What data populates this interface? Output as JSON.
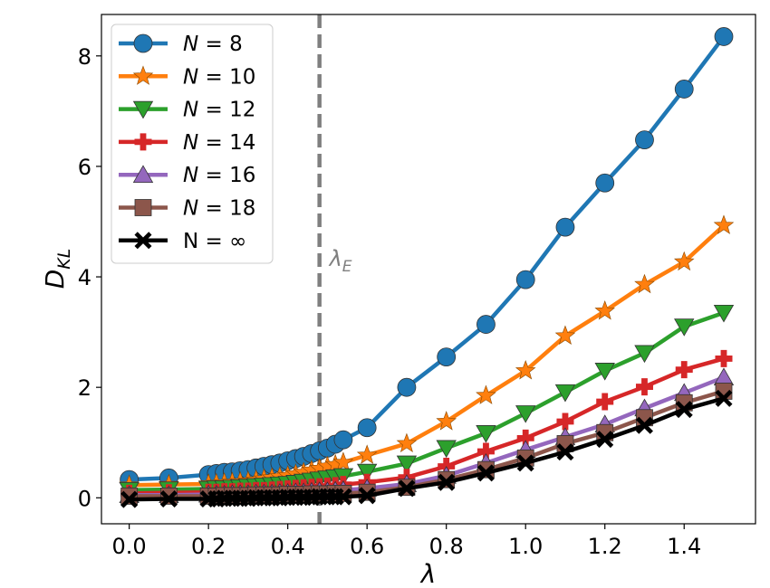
{
  "chart_data": {
    "type": "line",
    "title": "",
    "xlabel": "λ",
    "ylabel_main": "D",
    "ylabel_sub": "KL",
    "xlim": [
      -0.07,
      1.58
    ],
    "ylim": [
      -0.47,
      8.75
    ],
    "xticks": [
      0.0,
      0.2,
      0.4,
      0.6,
      0.8,
      1.0,
      1.2,
      1.4
    ],
    "xtick_labels": [
      "0.0",
      "0.2",
      "0.4",
      "0.6",
      "0.8",
      "1.0",
      "1.2",
      "1.4"
    ],
    "yticks": [
      0,
      2,
      4,
      6,
      8
    ],
    "ytick_labels": [
      "0",
      "2",
      "4",
      "6",
      "8"
    ],
    "grid": false,
    "legend_position": "top-left",
    "vline": {
      "x": 0.48,
      "color": "#7f7f7f",
      "style": "dashed"
    },
    "annotation": {
      "main": "λ",
      "sub": "E",
      "x": 0.505,
      "y": 4.2
    },
    "x": [
      0.0,
      0.1,
      0.2,
      0.22,
      0.24,
      0.26,
      0.28,
      0.3,
      0.32,
      0.34,
      0.36,
      0.38,
      0.4,
      0.42,
      0.44,
      0.46,
      0.48,
      0.5,
      0.52,
      0.54,
      0.6,
      0.7,
      0.8,
      0.9,
      1.0,
      1.1,
      1.2,
      1.3,
      1.4,
      1.5
    ],
    "series": [
      {
        "name_pre": "N",
        "name_post": " = 8",
        "color": "#1f77b4",
        "marker": "circle",
        "values": [
          0.33,
          0.36,
          0.42,
          0.44,
          0.46,
          0.47,
          0.49,
          0.51,
          0.54,
          0.57,
          0.6,
          0.63,
          0.67,
          0.71,
          0.75,
          0.8,
          0.85,
          0.9,
          0.97,
          1.05,
          1.27,
          2.0,
          2.55,
          3.14,
          3.95,
          4.9,
          5.7,
          6.48,
          7.4,
          8.35
        ]
      },
      {
        "name_pre": "N",
        "name_post": " = 10",
        "color": "#ff7f0e",
        "marker": "star",
        "values": [
          0.23,
          0.24,
          0.25,
          0.26,
          0.27,
          0.28,
          0.29,
          0.3,
          0.32,
          0.34,
          0.36,
          0.38,
          0.4,
          0.43,
          0.46,
          0.5,
          0.53,
          0.57,
          0.6,
          0.64,
          0.77,
          0.98,
          1.38,
          1.85,
          2.3,
          2.93,
          3.38,
          3.86,
          4.27,
          4.93
        ]
      },
      {
        "name_pre": "N",
        "name_post": " = 12",
        "color": "#2ca02c",
        "marker": "triangle-down",
        "values": [
          0.14,
          0.15,
          0.16,
          0.17,
          0.17,
          0.18,
          0.19,
          0.2,
          0.21,
          0.22,
          0.23,
          0.24,
          0.25,
          0.27,
          0.29,
          0.31,
          0.33,
          0.35,
          0.37,
          0.39,
          0.47,
          0.62,
          0.9,
          1.17,
          1.53,
          1.91,
          2.3,
          2.62,
          3.1,
          3.35
        ]
      },
      {
        "name_pre": "N",
        "name_post": " = 14",
        "color": "#d62728",
        "marker": "plus",
        "values": [
          0.08,
          0.09,
          0.1,
          0.1,
          0.11,
          0.11,
          0.12,
          0.12,
          0.13,
          0.13,
          0.14,
          0.15,
          0.16,
          0.17,
          0.18,
          0.19,
          0.2,
          0.21,
          0.22,
          0.24,
          0.28,
          0.37,
          0.57,
          0.84,
          1.08,
          1.38,
          1.74,
          2.01,
          2.32,
          2.52
        ]
      },
      {
        "name_pre": "N",
        "name_post": " = 16",
        "color": "#9467bd",
        "marker": "triangle-up",
        "values": [
          0.05,
          0.05,
          0.06,
          0.06,
          0.06,
          0.07,
          0.07,
          0.07,
          0.08,
          0.08,
          0.08,
          0.09,
          0.09,
          0.1,
          0.1,
          0.11,
          0.12,
          0.12,
          0.13,
          0.14,
          0.17,
          0.25,
          0.4,
          0.63,
          0.87,
          1.1,
          1.33,
          1.62,
          1.9,
          2.18
        ]
      },
      {
        "name_pre": "N",
        "name_post": " = 18",
        "color": "#8c564b",
        "marker": "square",
        "values": [
          0.03,
          0.03,
          0.03,
          0.03,
          0.04,
          0.04,
          0.04,
          0.04,
          0.05,
          0.05,
          0.05,
          0.05,
          0.06,
          0.06,
          0.06,
          0.07,
          0.07,
          0.07,
          0.08,
          0.08,
          0.1,
          0.19,
          0.33,
          0.51,
          0.72,
          0.98,
          1.18,
          1.45,
          1.72,
          1.93
        ]
      },
      {
        "name_pre": "N = ∞",
        "name_post": "",
        "color": "#000000",
        "marker": "x",
        "values": [
          -0.03,
          -0.02,
          -0.02,
          -0.02,
          -0.01,
          -0.01,
          -0.01,
          -0.01,
          0.0,
          0.0,
          0.0,
          0.0,
          0.01,
          0.01,
          0.01,
          0.01,
          0.02,
          0.02,
          0.02,
          0.02,
          0.04,
          0.17,
          0.28,
          0.45,
          0.63,
          0.83,
          1.06,
          1.31,
          1.6,
          1.8
        ]
      }
    ]
  }
}
